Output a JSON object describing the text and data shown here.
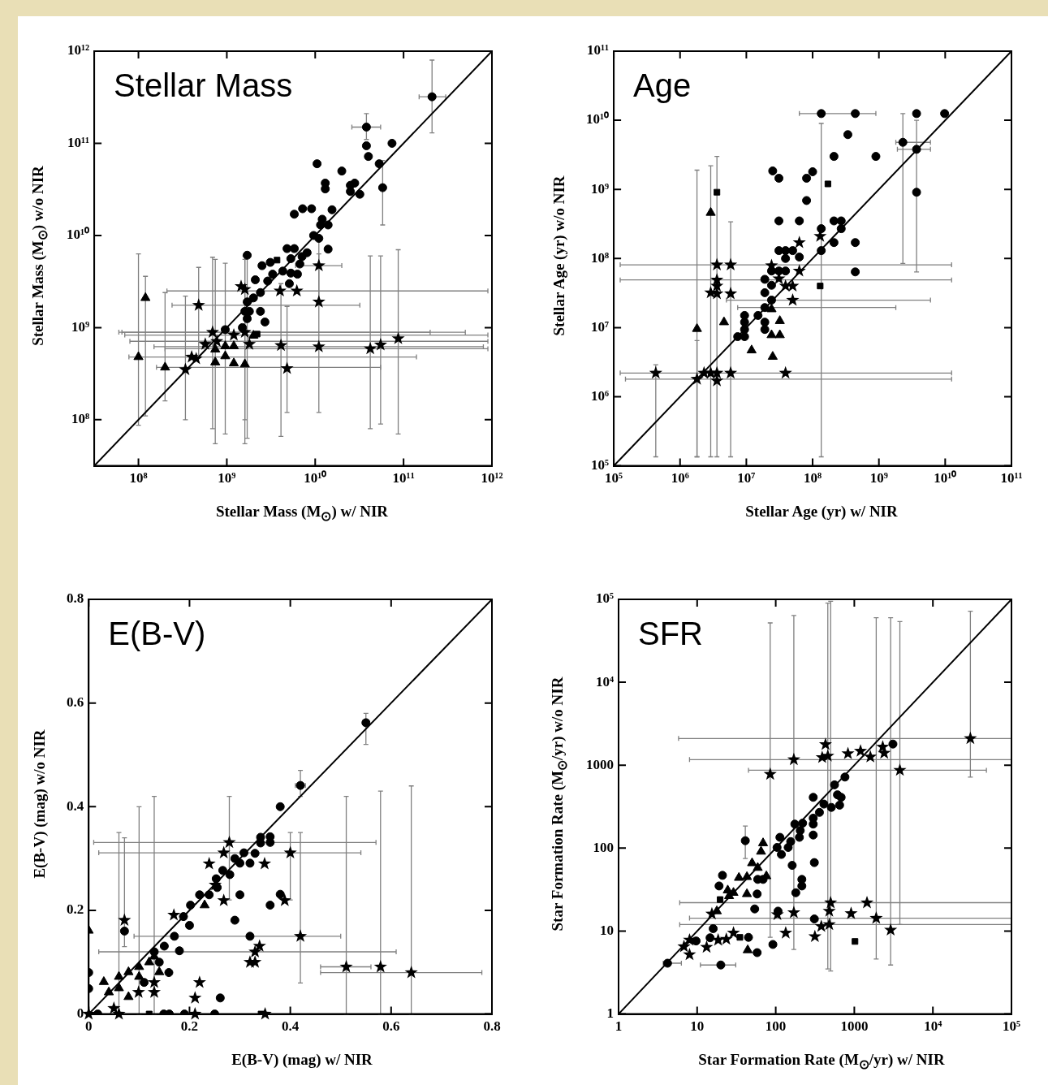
{
  "chart_data": [
    {
      "type": "scatter",
      "title": "Stellar Mass",
      "xlabel": "Stellar Mass (M$_{⊙}$) w/ NIR",
      "ylabel": "Stellar Mass (M$_{⊙}$) w/o NIR",
      "log": "xy",
      "xlim": [
        31600000.0,
        1000000000000.0
      ],
      "ylim": [
        31600000.0,
        1000000000000.0
      ],
      "xticks": [
        {
          "value": 100000000.0,
          "label": "10⁸"
        },
        {
          "value": 1000000000.0,
          "label": "10⁹"
        },
        {
          "value": 10000000000.0,
          "label": "10¹⁰"
        },
        {
          "value": 100000000000.0,
          "label": "10¹¹"
        },
        {
          "value": 1000000000000.0,
          "label": "10¹²"
        }
      ],
      "yticks": [
        {
          "value": 100000000.0,
          "label": "10⁸"
        },
        {
          "value": 1000000000.0,
          "label": "10⁹"
        },
        {
          "value": 10000000000.0,
          "label": "10¹⁰"
        },
        {
          "value": 100000000000.0,
          "label": "10¹¹"
        },
        {
          "value": 1000000000000.0,
          "label": "10¹²"
        }
      ],
      "series": [
        {
          "marker": "circle",
          "color": "#000000",
          "x": [
            210000000000.0,
            1700000000.0,
            960000000.0,
            38000000000.0,
            58000000000.0,
            38000000000.0,
            40000000000.0,
            74000000000.0,
            53000000000.0,
            10500000000.0,
            20000000000.0,
            13000000000.0,
            13000000000.0,
            25000000000.0,
            28000000000.0,
            25000000000.0,
            32000000000.0,
            5800000000.0,
            7200000000.0,
            9100000000.0,
            15500000000.0,
            12000000000.0,
            11500000000.0,
            14000000000.0,
            9600000000.0,
            11000000000.0,
            14000000000.0,
            4800000000.0,
            5800000000.0,
            8100000000.0,
            5300000000.0,
            7100000000.0,
            6700000000.0,
            4300000000.0,
            5300000000.0,
            6300000000.0,
            5100000000.0,
            3100000000.0,
            2500000000.0,
            1700000000.0,
            3300000000.0,
            2900000000.0,
            2100000000.0,
            2400000000.0,
            2000000000.0,
            1700000000.0,
            1600000000.0,
            1800000000.0,
            2400000000.0,
            2700000000.0,
            1500000000.0
          ],
          "values": [
            320000000000.0,
            1250000000.0,
            950000000.0,
            150000000000.0,
            33000000000.0,
            94000000000.0,
            72000000000.0,
            100000000000.0,
            60000000000.0,
            60000000000.0,
            50000000000.0,
            37000000000.0,
            32000000000.0,
            35000000000.0,
            37000000000.0,
            30000000000.0,
            28000000000.0,
            17000000000.0,
            19500000000.0,
            19500000000.0,
            19000000000.0,
            15000000000.0,
            13000000000.0,
            13000000000.0,
            10000000000.0,
            9300000000.0,
            7100000000.0,
            7200000000.0,
            7200000000.0,
            6500000000.0,
            5600000000.0,
            5900000000.0,
            4900000000.0,
            4100000000.0,
            3900000000.0,
            3800000000.0,
            3000000000.0,
            5100000000.0,
            4700000000.0,
            6100000000.0,
            3800000000.0,
            3200000000.0,
            3300000000.0,
            2400000000.0,
            2100000000.0,
            1900000000.0,
            1500000000.0,
            1500000000.0,
            1500000000.0,
            1150000000.0,
            1000000000.0
          ],
          "xerrors": [
            [
              150000000000.0,
              300000000000.0
            ],
            null,
            null,
            [
              26000000000.0,
              55000000000.0
            ],
            null,
            null,
            null,
            null,
            null,
            null,
            null,
            null,
            null,
            null,
            null,
            null,
            null,
            null,
            null,
            null,
            null,
            null,
            null,
            null,
            null,
            null,
            null,
            null,
            null,
            null,
            null,
            null,
            null,
            null,
            null,
            null,
            null,
            null,
            null,
            null,
            null,
            null,
            null,
            null,
            null,
            null,
            null,
            null,
            null,
            null,
            null
          ],
          "errors": [
            [
              130000000000.0,
              800000000000.0
            ],
            [
              63000000.0,
              5900000000.0
            ],
            [
              70000000.0,
              5000000000.0
            ],
            [
              110000000000.0,
              210000000000.0
            ],
            [
              13000000000.0,
              65000000000.0
            ],
            null,
            null,
            null,
            null,
            null,
            null,
            null,
            null,
            null,
            null,
            null,
            null,
            null,
            null,
            null,
            null,
            null,
            null,
            null,
            null,
            null,
            null,
            null,
            null,
            null,
            null,
            null,
            null,
            null,
            null,
            null,
            null,
            null,
            null,
            null,
            null,
            null,
            null,
            null,
            null,
            null,
            null,
            null,
            null,
            null,
            null
          ]
        },
        {
          "marker": "square",
          "color": "#000000",
          "x": [
            3700000000.0,
            2200000000.0
          ],
          "values": [
            5400000000.0,
            850000000.0
          ]
        },
        {
          "marker": "star",
          "color": "#000000",
          "x": [
            42000000000.0,
            11000000000.0,
            55000000000.0,
            87000000000.0,
            4100000000.0,
            4800000000.0,
            480000000.0,
            4000000000.0,
            1600000000.0,
            1200000000.0,
            690000000.0,
            770000000.0,
            11000000000.0,
            11000000000.0,
            1450000000.0,
            1600000000.0,
            6200000000.0,
            340000000.0,
            400000000.0,
            450000000.0,
            570000000.0,
            1800000000.0
          ],
          "values": [
            590000000.0,
            620000000.0,
            650000000.0,
            760000000.0,
            640000000.0,
            360000000.0,
            1750000000.0,
            2500000000.0,
            890000000.0,
            830000000.0,
            890000000.0,
            710000000.0,
            4700000000.0,
            1900000000.0,
            2800000000.0,
            2600000000.0,
            2500000000.0,
            350000000.0,
            480000000.0,
            460000000.0,
            660000000.0,
            660000000.0
          ],
          "xerrors": [
            [
              200000000.0,
              900000000000.0
            ],
            [
              150000000.0,
              800000000000.0
            ],
            null,
            null,
            null,
            null,
            [
              240000000.0,
              32000000000.0
            ],
            [
              210000000.0,
              900000000000.0
            ],
            [
              60000000.0,
              500000000000.0
            ],
            [
              70000000.0,
              900000000000.0
            ],
            [
              65000000.0,
              200000000000.0
            ],
            [
              80000000.0,
              900000000000.0
            ],
            [
              6000000000.0,
              20000000000.0
            ],
            null,
            null,
            null,
            null,
            null,
            null,
            null,
            null,
            null
          ],
          "errors": [
            [
              80000000.0,
              6000000000.0
            ],
            [
              120000000.0,
              6300000000.0
            ],
            [
              90000000.0,
              6000000000.0
            ],
            [
              70000000.0,
              7000000000.0
            ],
            [
              66000000.0,
              3000000000.0
            ],
            [
              120000000.0,
              1700000000.0
            ],
            [
              500000000.0,
              4500000000.0
            ],
            null,
            [
              100000000.0,
              6000000000.0
            ],
            null,
            [
              80000000.0,
              5800000000.0
            ],
            null,
            [
              1900000000.0,
              10000000000.0
            ],
            null,
            null,
            null,
            null,
            [
              100000000.0,
              2200000000.0
            ],
            null,
            null,
            null,
            null
          ]
        },
        {
          "marker": "triangle",
          "color": "#000000",
          "x": [
            120000000.0,
            100000000.0,
            200000000.0,
            740000000.0,
            1600000000.0,
            960000000.0,
            1200000000.0,
            960000000.0,
            1200000000.0,
            740000000.0,
            2000000000.0
          ],
          "values": [
            2100000000.0,
            480000000.0,
            370000000.0,
            420000000.0,
            400000000.0,
            490000000.0,
            410000000.0,
            630000000.0,
            630000000.0,
            580000000.0,
            820000000.0
          ],
          "xerrors": [
            null,
            [
              78000000.0,
              140000000000.0
            ],
            [
              160000000.0,
              55000000000.0
            ],
            null,
            null,
            null,
            null,
            null,
            null,
            null,
            null
          ],
          "errors": [
            [
              110000000.0,
              3600000000.0
            ],
            [
              87000000.0,
              6300000000.0
            ],
            [
              160000000.0,
              2400000000.0
            ],
            [
              55000000.0,
              5500000000.0
            ],
            [
              55000000.0,
              5500000000.0
            ],
            null,
            null,
            null,
            null,
            null,
            null
          ]
        },
        {
          "type": "line",
          "marker": "none",
          "color": "#000000",
          "x": [
            31600000.0,
            1000000000000.0
          ],
          "values": [
            31600000.0,
            1000000000000.0
          ]
        }
      ]
    },
    {
      "type": "scatter",
      "title": "Age",
      "xlabel": "Stellar Age (yr) w/ NIR",
      "ylabel": "Stellar Age (yr) w/o NIR",
      "log": "xy",
      "xlim": [
        100000.0,
        100000000000.0
      ],
      "ylim": [
        100000.0,
        100000000000.0
      ],
      "xticks": [
        {
          "value": 100000.0,
          "label": "10⁵"
        },
        {
          "value": 1000000.0,
          "label": "10⁶"
        },
        {
          "value": 10000000.0,
          "label": "10⁷"
        },
        {
          "value": 100000000.0,
          "label": "10⁸"
        },
        {
          "value": 1000000000.0,
          "label": "10⁹"
        },
        {
          "value": 10000000000.0,
          "label": "10¹⁰"
        },
        {
          "value": 100000000000.0,
          "label": "10¹¹"
        }
      ],
      "yticks": [
        {
          "value": 100000.0,
          "label": "10⁵"
        },
        {
          "value": 1000000.0,
          "label": "10⁶"
        },
        {
          "value": 10000000.0,
          "label": "10⁷"
        },
        {
          "value": 100000000.0,
          "label": "10⁸"
        },
        {
          "value": 1000000000.0,
          "label": "10⁹"
        },
        {
          "value": 10000000000.0,
          "label": "10¹⁰"
        },
        {
          "value": 100000000000.0,
          "label": "10¹¹"
        }
      ],
      "series": [
        {
          "marker": "circle",
          "color": "#000000",
          "x": [
            2300000000.0,
            3700000000.0,
            135000000.0,
            135000000.0,
            19000000.0,
            24000000.0,
            440000000.0,
            3700000000.0,
            9800000000.0,
            340000000.0,
            210000000.0,
            900000000.0,
            100000000.0,
            25000000.0,
            31000000.0,
            81000000.0,
            81000000.0,
            3700000000.0,
            31000000.0,
            63000000.0,
            210000000.0,
            270000000.0,
            270000000.0,
            135000000.0,
            210000000.0,
            440000000.0,
            440000000.0,
            31000000.0,
            39000000.0,
            50000000.0,
            39000000.0,
            63000000.0,
            24000000.0,
            31000000.0,
            39000000.0,
            19000000.0,
            24000000.0,
            19000000.0,
            15000000.0,
            9400000.0,
            9400000.0,
            19000000.0,
            9400000.0,
            7400000.0,
            9400000.0,
            19000000.0
          ],
          "values": [
            4800000000.0,
            3800000000.0,
            12500000000.0,
            130000000.0,
            19500000.0,
            25000000.0,
            12500000000.0,
            12500000000.0,
            12500000000.0,
            6200000000.0,
            3000000000.0,
            3000000000.0,
            1800000000.0,
            1850000000.0,
            1450000000.0,
            1450000000.0,
            690000000.0,
            910000000.0,
            350000000.0,
            350000000.0,
            350000000.0,
            350000000.0,
            270000000.0,
            270000000.0,
            170000000.0,
            170000000.0,
            64000000.0,
            130000000.0,
            130000000.0,
            130000000.0,
            100000000.0,
            105000000.0,
            66000000.0,
            66000000.0,
            66000000.0,
            50000000.0,
            41000000.0,
            32000000.0,
            15000000.0,
            15000000.0,
            12000000.0,
            12000000.0,
            9400000.0,
            7400000.0,
            7400000.0,
            9400000.0
          ],
          "xerrors": [
            [
              1800000000.0,
              6000000000.0
            ],
            [
              1900000000.0,
              6000000000.0
            ],
            [
              63000000.0,
              900000000.0
            ],
            null,
            [
              7400000.0,
              1800000000.0
            ],
            [
              5000000.0,
              6000000000.0
            ],
            null,
            null,
            null,
            null,
            null,
            null,
            null,
            null,
            null,
            null,
            null,
            null,
            null,
            null,
            null,
            null,
            null,
            null,
            null,
            null,
            null,
            null,
            null,
            null,
            null,
            null,
            null,
            null,
            null,
            null,
            null,
            null,
            null,
            null,
            null,
            null,
            null,
            null,
            null,
            null
          ],
          "errors": [
            [
              85000000.0,
              12500000000.0
            ],
            [
              64000000.0,
              10000000000.0
            ],
            null,
            [
              135000.0,
              9000000000.0
            ],
            null,
            null,
            null,
            null,
            null,
            null,
            null,
            null,
            null,
            null,
            null,
            null,
            null,
            null,
            null,
            null,
            null,
            null,
            null,
            null,
            null,
            null,
            null,
            null,
            null,
            null,
            null,
            null,
            null,
            null,
            null,
            null,
            null,
            null,
            null,
            null,
            null,
            null,
            null,
            null,
            null,
            null
          ]
        },
        {
          "marker": "square",
          "color": "#000000",
          "x": [
            3600000.0,
            170000000.0,
            130000000.0
          ],
          "values": [
            910000000.0,
            1200000000.0,
            40000000.0
          ]
        },
        {
          "marker": "star",
          "color": "#000000",
          "x": [
            3600000.0,
            5800000.0,
            3600000.0,
            3600000.0,
            2900000.0,
            5800000.0,
            3600000.0,
            430000.0,
            1800000.0,
            63000000.0,
            130000000.0,
            24000000.0,
            63000000.0,
            31000000.0,
            50000000.0,
            50000000.0,
            39000000.0,
            2300000.0,
            2900000.0,
            3600000.0,
            3600000.0,
            5800000.0,
            39000000.0
          ],
          "values": [
            81000000.0,
            81000000.0,
            49000000.0,
            40000000.0,
            32000000.0,
            31000000.0,
            31000000.0,
            2200000.0,
            1800000.0,
            170000000.0,
            210000000.0,
            79000000.0,
            66000000.0,
            51000000.0,
            40000000.0,
            25000000.0,
            40000000.0,
            2200000.0,
            2200000.0,
            2200000.0,
            1700000.0,
            2200000.0,
            2200000.0
          ],
          "xerrors": [
            [
              125000.0,
              12500000000.0
            ],
            null,
            [
              125000.0,
              12500000000.0
            ],
            null,
            null,
            null,
            null,
            [
              125000.0,
              12500000000.0
            ],
            [
              150000.0,
              12500000000.0
            ],
            null,
            null,
            null,
            null,
            null,
            null,
            null,
            null,
            null,
            null,
            null,
            null,
            null,
            null
          ],
          "errors": [
            [
              135000.0,
              3000000000.0
            ],
            [
              135000.0,
              340000000.0
            ],
            null,
            null,
            null,
            null,
            null,
            [
              135000.0,
              2900000.0
            ],
            [
              135000.0,
              6500000.0
            ],
            null,
            null,
            null,
            null,
            null,
            null,
            null,
            null,
            null,
            null,
            null,
            null,
            null,
            null
          ]
        },
        {
          "marker": "triangle",
          "color": "#000000",
          "x": [
            2900000.0,
            1800000.0,
            4600000.0,
            12000000.0,
            25000000.0,
            24000000.0,
            32000000.0,
            32000000.0,
            24000000.0
          ],
          "values": [
            460000000.0,
            9600000.0,
            12000000.0,
            4700000.0,
            3800000.0,
            7800000.0,
            7800000.0,
            12500000.0,
            18500000.0
          ],
          "errors": [
            [
              135000.0,
              2200000000.0
            ],
            [
              135000.0,
              1900000000.0
            ],
            null,
            null,
            null,
            null,
            null,
            null,
            null
          ]
        },
        {
          "type": "line",
          "marker": "none",
          "color": "#000000",
          "x": [
            100000.0,
            100000000000.0
          ],
          "values": [
            100000.0,
            100000000000.0
          ]
        }
      ]
    },
    {
      "type": "scatter",
      "title": "E(B-V)",
      "xlabel": "E(B-V) (mag) w/ NIR",
      "ylabel": "E(B-V) (mag) w/o NIR",
      "xlim": [
        0,
        0.8
      ],
      "ylim": [
        0,
        0.8
      ],
      "xticks": [
        0,
        0.2,
        0.4,
        0.6,
        0.8
      ],
      "yticks": [
        0,
        0.2,
        0.4,
        0.6,
        0.8
      ],
      "series": [
        {
          "marker": "circle",
          "color": "#000000",
          "x": [
            0.55,
            0.42,
            0.38,
            0.341,
            0.36,
            0.36,
            0.341,
            0.33,
            0.308,
            0.32,
            0.3,
            0.29,
            0.28,
            0.266,
            0.253,
            0.255,
            0.239,
            0.22,
            0.3,
            0.38,
            0.36,
            0.202,
            0.188,
            0.2,
            0.29,
            0.17,
            0.15,
            0.18,
            0.13,
            0.14,
            0.159,
            0.11,
            0.071,
            0.32,
            0,
            0,
            0.261,
            0.018,
            0.149,
            0.16,
            0.19,
            0.25
          ],
          "values": [
            0.562,
            0.441,
            0.4,
            0.341,
            0.342,
            0.331,
            0.33,
            0.31,
            0.311,
            0.291,
            0.291,
            0.3,
            0.269,
            0.277,
            0.261,
            0.244,
            0.23,
            0.23,
            0.23,
            0.231,
            0.21,
            0.21,
            0.188,
            0.171,
            0.181,
            0.15,
            0.131,
            0.122,
            0.12,
            0.1,
            0.08,
            0.061,
            0.16,
            0.15,
            0.08,
            0.049,
            0.031,
            0,
            0,
            0,
            0,
            0
          ],
          "xerrors": [
            null,
            [
              0.41,
              0.43
            ],
            null,
            null,
            null,
            null,
            null,
            null,
            null,
            null,
            null,
            null,
            null,
            null,
            null,
            null,
            null,
            null,
            null,
            null,
            null,
            null,
            null,
            null,
            null,
            null,
            null,
            null,
            null,
            null,
            null,
            null,
            null,
            null,
            null,
            null,
            null,
            null,
            null,
            null,
            null,
            null
          ],
          "errors": [
            [
              0.52,
              0.58
            ],
            [
              0.42,
              0.47
            ],
            null,
            null,
            null,
            null,
            null,
            null,
            null,
            null,
            null,
            null,
            null,
            null,
            null,
            null,
            null,
            null,
            null,
            null,
            null,
            null,
            null,
            null,
            null,
            null,
            null,
            null,
            null,
            null,
            null,
            null,
            null,
            null,
            null,
            null,
            null,
            null,
            null,
            null,
            null,
            null
          ]
        },
        {
          "marker": "square",
          "color": "#000000",
          "x": [
            0.12,
            0.342
          ],
          "values": [
            0,
            0
          ]
        },
        {
          "marker": "star",
          "color": "#000000",
          "x": [
            0.511,
            0.579,
            0.64,
            0.42,
            0.4,
            0.33,
            0.279,
            0.071,
            0.268,
            0.239,
            0.349,
            0.268,
            0.389,
            0.251,
            0.169,
            0.339,
            0.32,
            0.33,
            0.22,
            0.211,
            0.13,
            0.13,
            0.099,
            0.05,
            0.06,
            0.211,
            0.35,
            0
          ],
          "values": [
            0.091,
            0.091,
            0.08,
            0.15,
            0.311,
            0.12,
            0.331,
            0.181,
            0.311,
            0.29,
            0.29,
            0.219,
            0.219,
            0.249,
            0.191,
            0.131,
            0.1,
            0.1,
            0.061,
            0.031,
            0.061,
            0.042,
            0.042,
            0.011,
            0,
            0,
            0,
            0
          ],
          "xerrors": [
            [
              0.46,
              0.56
            ],
            null,
            [
              0.46,
              0.78
            ],
            [
              0.09,
              0.5
            ],
            [
              0.02,
              0.54
            ],
            [
              0.02,
              0.61
            ],
            [
              0.01,
              0.57
            ],
            null,
            null,
            null,
            null,
            null,
            null,
            null,
            null,
            null,
            null,
            null,
            null,
            null,
            null,
            null,
            null,
            null,
            null,
            null,
            null,
            null
          ],
          "errors": [
            [
              0,
              0.42
            ],
            [
              0,
              0.43
            ],
            [
              0,
              0.44
            ],
            [
              0.06,
              0.35
            ],
            [
              0.22,
              0.35
            ],
            null,
            [
              0.22,
              0.42
            ],
            [
              0.13,
              0.34
            ],
            null,
            null,
            null,
            null,
            null,
            null,
            null,
            null,
            null,
            null,
            null,
            null,
            null,
            null,
            null,
            null,
            null,
            null,
            null,
            null
          ]
        },
        {
          "marker": "triangle",
          "color": "#000000",
          "x": [
            0.06,
            0.1,
            0.13,
            0,
            0.03,
            0.04,
            0.06,
            0.079,
            0.079,
            0.1,
            0.12,
            0.14,
            0.23
          ],
          "values": [
            0.072,
            0.091,
            0.111,
            0.161,
            0.062,
            0.042,
            0.05,
            0.081,
            0.033,
            0.072,
            0.1,
            0.081,
            0.21
          ],
          "errors": [
            [
              0,
              0.35
            ],
            [
              0,
              0.4
            ],
            [
              0,
              0.42
            ],
            null,
            null,
            null,
            null,
            null,
            null,
            null,
            null,
            null,
            null
          ]
        },
        {
          "type": "line",
          "marker": "none",
          "color": "#000000",
          "x": [
            0,
            0.8
          ],
          "values": [
            0,
            0.8
          ]
        }
      ]
    },
    {
      "type": "scatter",
      "title": "SFR",
      "xlabel": "Star Formation Rate (M$_{⊙}$/yr) w/ NIR",
      "ylabel": "Star Formation Rate (M$_{⊙}$/yr) w/o NIR",
      "log": "xy",
      "xlim": [
        1,
        100000.0
      ],
      "ylim": [
        1,
        100000.0
      ],
      "xticks": [
        1,
        10,
        100,
        1000,
        {
          "value": 10000.0,
          "label": "10⁴"
        },
        {
          "value": 100000.0,
          "label": "10⁵"
        }
      ],
      "yticks": [
        1,
        10,
        100,
        1000,
        {
          "value": 10000.0,
          "label": "10⁴"
        },
        {
          "value": 100000.0,
          "label": "10⁵"
        }
      ],
      "series": [
        {
          "marker": "circle",
          "color": "#000000",
          "x": [
            4.2,
            20,
            41,
            3100,
            760,
            560,
            610,
            680,
            650,
            510,
            410,
            300,
            360,
            300,
            300,
            220,
            175,
            205,
            200,
            300,
            155,
            113,
            104,
            144,
            118,
            310,
            162,
            215,
            215,
            180,
            59,
            69,
            21,
            19,
            58,
            54,
            107,
            310,
            16,
            14.6,
            9.7,
            45,
            92,
            58
          ],
          "values": [
            4.1,
            3.9,
            123,
            1800,
            720,
            580,
            440,
            410,
            330,
            310,
            340,
            410,
            270,
            230,
            195,
            200,
            195,
            163,
            135,
            144,
            120,
            135,
            102,
            102,
            84,
            67,
            62,
            42,
            35,
            29,
            42,
            42,
            47,
            35,
            28,
            18.5,
            17.4,
            14,
            10.7,
            8.3,
            7.6,
            8.4,
            6.9,
            5.5
          ],
          "xerrors": [
            [
              3.7,
              6.3
            ],
            [
              11,
              31
            ],
            null,
            null,
            null,
            null,
            null,
            null,
            null,
            null,
            null,
            null,
            null,
            null,
            null,
            null,
            null,
            null,
            null,
            null,
            null,
            null,
            null,
            null,
            null,
            null,
            null,
            null,
            null,
            null,
            null,
            null,
            null,
            null,
            null,
            null,
            null,
            null,
            null,
            null,
            null,
            null,
            null,
            null
          ],
          "errors": [
            null,
            null,
            [
              75,
              185
            ],
            null,
            null,
            null,
            null,
            null,
            null,
            null,
            null,
            null,
            null,
            null,
            null,
            null,
            null,
            null,
            null,
            null,
            null,
            null,
            null,
            null,
            null,
            null,
            null,
            null,
            null,
            null,
            null,
            null,
            null,
            null,
            null,
            null,
            null,
            null,
            null,
            null,
            null,
            null,
            null,
            null
          ]
        },
        {
          "marker": "square",
          "color": "#000000",
          "x": [
            19.6,
            35,
            1020
          ],
          "values": [
            24,
            8.4,
            7.5
          ]
        },
        {
          "marker": "star",
          "color": "#000000",
          "x": [
            30000,
            3800,
            170,
            85,
            460,
            1450,
            1900,
            2900,
            480,
            500,
            480,
            2300,
            2400,
            1600,
            1200,
            830,
            430,
            390,
            910,
            380,
            105,
            134,
            315,
            29,
            23.5,
            18.5,
            13.2,
            8.0,
            6.8,
            8.0,
            15.4,
            170
          ],
          "values": [
            2100,
            870,
            1170,
            780,
            1290,
            22,
            14.3,
            10.3,
            17.4,
            22,
            12,
            1660,
            1400,
            1260,
            1480,
            1380,
            1780,
            1240,
            16.3,
            11.4,
            15.8,
            9.5,
            8.6,
            9.5,
            8.0,
            7.8,
            6.4,
            7.8,
            6.5,
            5.2,
            16.1,
            16.7
          ],
          "xerrors": [
            [
              5.8,
              100000.0
            ],
            [
              45,
              48000
            ],
            [
              8,
              100000.0
            ],
            null,
            null,
            [
              6,
              100000.0
            ],
            [
              8,
              100000.0
            ],
            null,
            null,
            null,
            [
              6,
              100000.0
            ],
            null,
            null,
            null,
            null,
            null,
            null,
            null,
            null,
            null,
            null,
            null,
            null,
            null,
            null,
            null,
            null,
            null,
            null,
            null,
            null,
            null
          ],
          "errors": [
            [
              720,
              72000
            ],
            [
              12,
              54000
            ],
            [
              6,
              64000
            ],
            [
              8.4,
              52000
            ],
            [
              3.5,
              90000
            ],
            null,
            [
              4.6,
              60000
            ],
            [
              3.9,
              60000
            ],
            null,
            [
              3.3,
              95000
            ],
            null,
            null,
            null,
            null,
            null,
            null,
            null,
            null,
            null,
            null,
            null,
            null,
            null,
            null,
            null,
            null,
            null,
            null,
            null,
            null,
            null,
            null
          ]
        },
        {
          "marker": "triangle",
          "color": "#000000",
          "x": [
            69,
            65,
            50,
            59,
            76,
            34,
            43,
            24.5,
            29,
            43,
            25.5,
            17.8,
            44
          ],
          "values": [
            115,
            91,
            66,
            58,
            46,
            44,
            45,
            31,
            29,
            28,
            26.5,
            17.4,
            5.9
          ]
        },
        {
          "type": "line",
          "marker": "none",
          "color": "#000000",
          "x": [
            1,
            100000.0
          ],
          "values": [
            1,
            100000.0
          ]
        }
      ]
    }
  ]
}
